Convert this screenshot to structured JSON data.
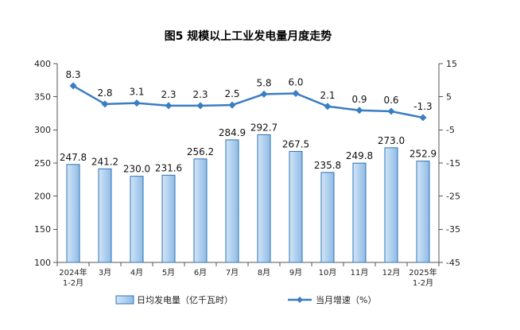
{
  "chart_data": {
    "type": "bar",
    "title": "图5 规模以上工业发电量月度走势",
    "categories": [
      "2024年\n1-2月",
      "3月",
      "4月",
      "5月",
      "6月",
      "7月",
      "8月",
      "9月",
      "10月",
      "11月",
      "12月",
      "2025年\n1-2月"
    ],
    "series": [
      {
        "name": "日均发电量（亿千瓦时）",
        "type": "bar",
        "axis": "left",
        "values": [
          247.8,
          241.2,
          230.0,
          231.6,
          256.2,
          284.9,
          292.7,
          267.5,
          235.8,
          249.8,
          273.0,
          252.9
        ],
        "color": "#8fbbe6",
        "color_light": "#d3e6f7",
        "stroke": "#2e74b5"
      },
      {
        "name": "当月增速（%）",
        "type": "line",
        "axis": "right",
        "values": [
          8.3,
          2.8,
          3.1,
          2.3,
          2.3,
          2.5,
          5.8,
          6.0,
          2.1,
          0.9,
          0.6,
          -1.3
        ],
        "color": "#3b7dc4"
      }
    ],
    "y_left": {
      "range": [
        100,
        400
      ],
      "ticks": [
        100,
        150,
        200,
        250,
        300,
        350,
        400
      ]
    },
    "y_right": {
      "range": [
        -45,
        15
      ],
      "ticks": [
        -45,
        -35,
        -25,
        -15,
        -5,
        5,
        15
      ]
    },
    "grid": false,
    "legend": "bottom"
  }
}
